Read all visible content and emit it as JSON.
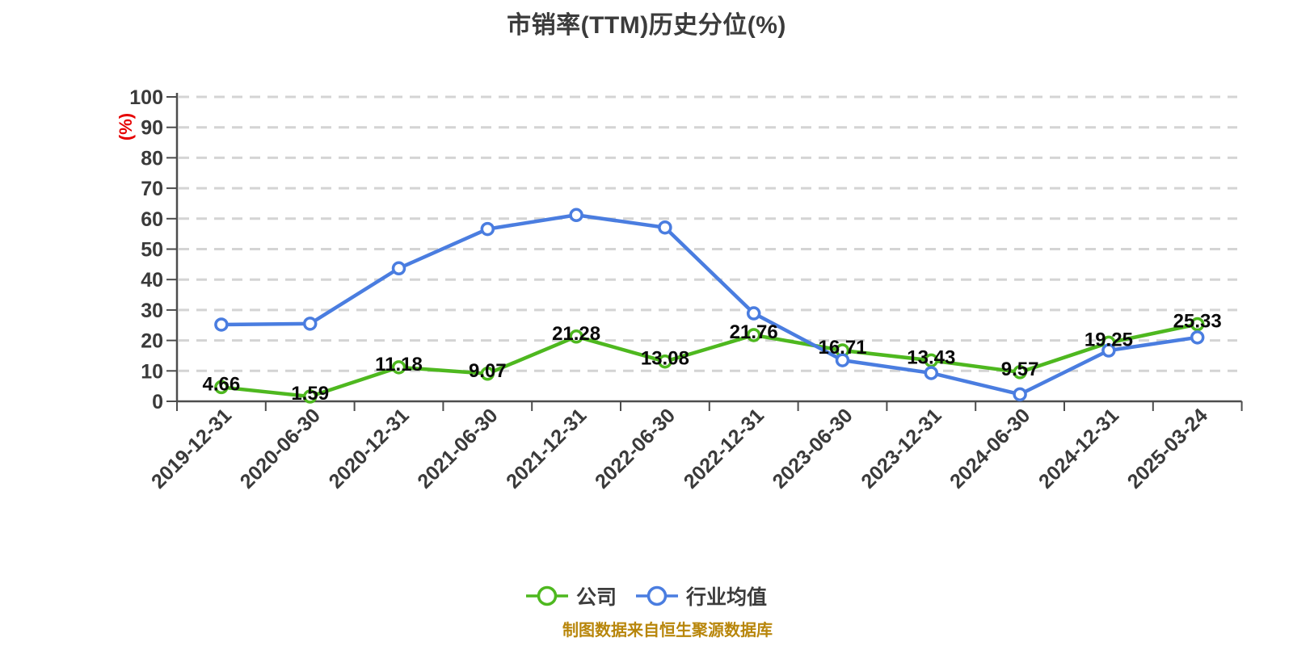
{
  "title": "市销率(TTM)历史分位(%)",
  "y_axis_unit": "(%)",
  "source_note": "制图数据来自恒生聚源数据库",
  "legend": {
    "items": [
      {
        "label": "公司"
      },
      {
        "label": "行业均值"
      }
    ]
  },
  "chart_data": {
    "type": "line",
    "title": "市销率(TTM)历史分位(%)",
    "ylabel": "(%)",
    "ylim": [
      0,
      100
    ],
    "y_ticks": [
      0,
      10,
      20,
      30,
      40,
      50,
      60,
      70,
      80,
      90,
      100
    ],
    "grid": "horizontal-dashed",
    "legend_position": "bottom",
    "categories": [
      "2019-12-31",
      "2020-06-30",
      "2020-12-31",
      "2021-06-30",
      "2021-12-31",
      "2022-06-30",
      "2022-12-31",
      "2023-06-30",
      "2023-12-31",
      "2024-06-30",
      "2024-12-31",
      "2025-03-24"
    ],
    "series": [
      {
        "name": "公司",
        "color": "#4eb81f",
        "point_labels": true,
        "values": [
          4.66,
          1.59,
          11.18,
          9.07,
          21.28,
          13.08,
          21.76,
          16.71,
          13.43,
          9.57,
          19.25,
          25.33
        ]
      },
      {
        "name": "行业均值",
        "color": "#4a7de0",
        "point_labels": false,
        "values": [
          25.2,
          25.5,
          43.7,
          56.6,
          61.2,
          57.1,
          28.9,
          13.5,
          9.3,
          2.3,
          16.7,
          21.0
        ]
      }
    ]
  },
  "colors": {
    "company": "#4eb81f",
    "industry": "#4a7de0",
    "grid": "#d4d4d4",
    "axis": "#4d4d4d",
    "tick_label": "#3a3a3a",
    "data_label": "#0a0a0a",
    "title": "#3b3b3b",
    "legend_text": "#3c3c3c",
    "unit_label": "#e60000",
    "source_note": "#b8860b",
    "background": "#ffffff"
  }
}
